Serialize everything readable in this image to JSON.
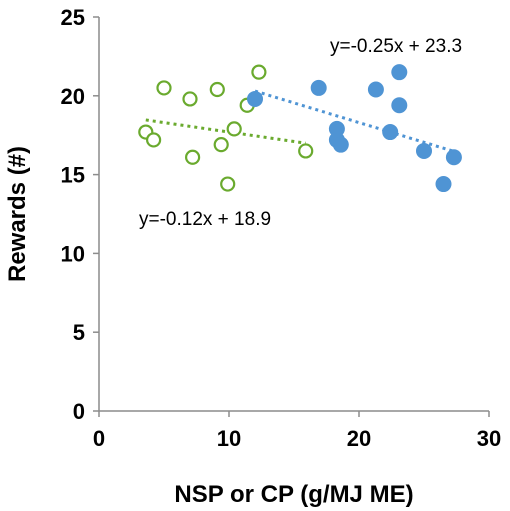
{
  "chart_data": {
    "type": "scatter",
    "title": "",
    "xlabel": "NSP or CP (g/MJ  ME)",
    "ylabel": "Rewards (#)",
    "xlim": [
      0,
      30
    ],
    "ylim": [
      0,
      25
    ],
    "x_ticks": [
      "0",
      "10",
      "20",
      "30"
    ],
    "y_ticks": [
      "0",
      "5",
      "10",
      "15",
      "20",
      "25"
    ],
    "grid": false,
    "legend": "none",
    "series": [
      {
        "marker": "open-circle",
        "color": "#6aaa2e",
        "points": [
          [
            3.6,
            17.7
          ],
          [
            4.2,
            17.2
          ],
          [
            5.0,
            20.5
          ],
          [
            7.0,
            19.8
          ],
          [
            7.2,
            16.1
          ],
          [
            9.1,
            20.4
          ],
          [
            9.4,
            16.9
          ],
          [
            9.9,
            14.4
          ],
          [
            10.4,
            17.9
          ],
          [
            11.4,
            19.4
          ],
          [
            12.3,
            21.5
          ],
          [
            15.9,
            16.5
          ]
        ],
        "trendline": {
          "x": [
            3.6,
            15.9
          ],
          "equation": "y=-0.12x + 18.9",
          "slope": -0.12,
          "intercept": 18.9
        }
      },
      {
        "marker": "filled-circle",
        "color": "#4f94d4",
        "points": [
          [
            12.0,
            19.8
          ],
          [
            16.9,
            20.5
          ],
          [
            18.3,
            17.9
          ],
          [
            18.3,
            17.2
          ],
          [
            18.6,
            16.9
          ],
          [
            21.3,
            20.4
          ],
          [
            22.4,
            17.7
          ],
          [
            23.1,
            21.5
          ],
          [
            23.1,
            19.4
          ],
          [
            25.0,
            16.5
          ],
          [
            26.5,
            14.4
          ],
          [
            27.3,
            16.1
          ]
        ],
        "trendline": {
          "x": [
            12.0,
            27.3
          ],
          "equation": "y=-0.25x + 23.3",
          "slope": -0.25,
          "intercept": 23.3
        }
      }
    ]
  }
}
